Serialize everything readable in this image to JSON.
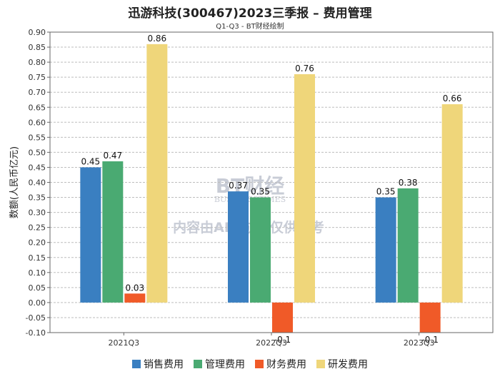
{
  "colors": {
    "sales": "#3a7fc1",
    "admin": "#4aaa72",
    "finance": "#f05a28",
    "rnd": "#efd67a",
    "grid": "#bdbdbd",
    "axis": "#666666",
    "watermark": "#c8ccd6"
  },
  "watermark": {
    "logo_text": "BT财经",
    "logo_sub": "BUSINESSTIMES",
    "notice": "内容由AI生成，仅供参考"
  },
  "chart_data": {
    "type": "bar",
    "title": "迅游科技(300467)2023三季报 – 费用管理",
    "subtitle": "Q1-Q3 - BT财经绘制",
    "xlabel": "",
    "ylabel": "数额(人民币亿元)",
    "ylim": [
      -0.1,
      0.9
    ],
    "ytick_step": 0.05,
    "ytick_labels": [
      "0.90",
      "0.85",
      "0.80",
      "0.75",
      "0.70",
      "0.65",
      "0.60",
      "0.55",
      "0.50",
      "0.45",
      "0.40",
      "0.35",
      "0.30",
      "0.25",
      "0.20",
      "0.15",
      "0.10",
      "0.05",
      "0.00",
      "-0.05",
      "-0.10"
    ],
    "grid": true,
    "legend_position": "bottom-center",
    "categories": [
      "2021Q3",
      "2022Q3",
      "2023Q3"
    ],
    "series": [
      {
        "name": "销售费用",
        "key": "sales",
        "values": [
          0.45,
          0.37,
          0.35
        ],
        "labels": [
          "0.45",
          "0.37",
          "0.35"
        ]
      },
      {
        "name": "管理费用",
        "key": "admin",
        "values": [
          0.47,
          0.35,
          0.38
        ],
        "labels": [
          "0.47",
          "0.35",
          "0.38"
        ]
      },
      {
        "name": "财务费用",
        "key": "finance",
        "values": [
          0.03,
          -0.1,
          -0.1
        ],
        "labels": [
          "0.03",
          "-0.1",
          "-0.1"
        ]
      },
      {
        "name": "研发费用",
        "key": "rnd",
        "values": [
          0.86,
          0.76,
          0.66
        ],
        "labels": [
          "0.86",
          "0.76",
          "0.66"
        ]
      }
    ]
  }
}
